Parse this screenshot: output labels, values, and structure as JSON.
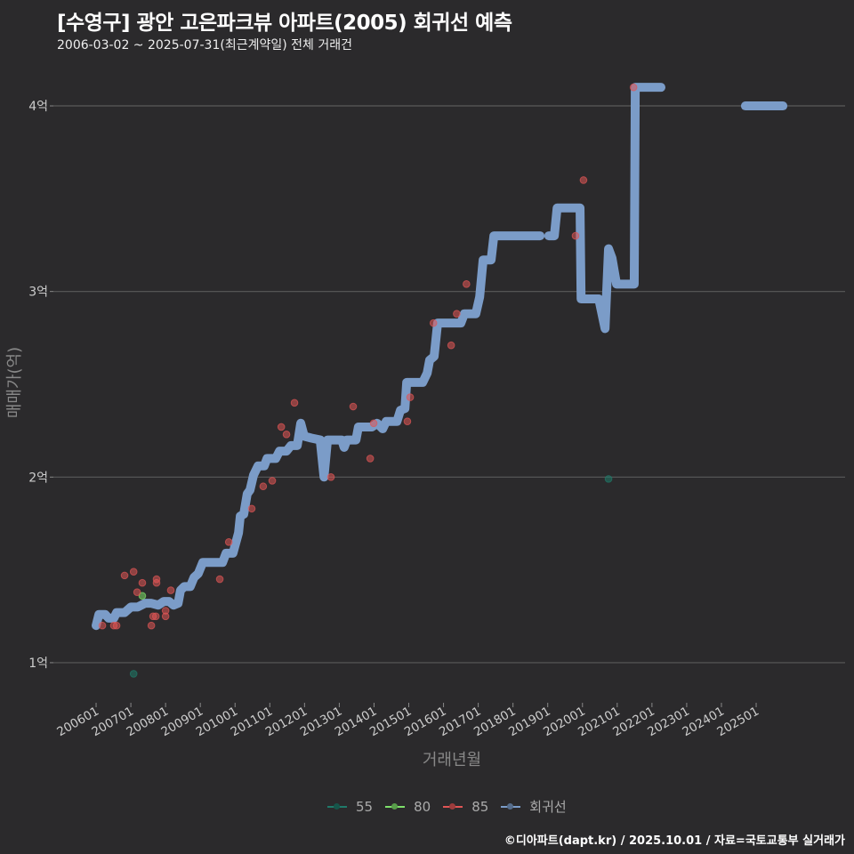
{
  "title": "[수영구] 광안 고은파크뷰 아파트(2005) 회귀선 예측",
  "subtitle": "2006-03-02 ~ 2025-07-31(최근계약일) 전체 거래건",
  "footer": "©디아파트(dapt.kr) / 2025.10.01 / 자료=국토교통부 실거래가",
  "chart_data": {
    "type": "scatter",
    "xlabel": "거래년월",
    "ylabel": "매매가(억)",
    "xlim": [
      2004.77,
      2027.56
    ],
    "ylim": [
      0.784,
      4.235
    ],
    "grid": true,
    "legend_position": "bottom",
    "x_ticks": [
      {
        "v": 2006,
        "label": "200601"
      },
      {
        "v": 2007,
        "label": "200701"
      },
      {
        "v": 2008,
        "label": "200801"
      },
      {
        "v": 2009,
        "label": "200901"
      },
      {
        "v": 2010,
        "label": "201001"
      },
      {
        "v": 2011,
        "label": "201101"
      },
      {
        "v": 2012,
        "label": "201201"
      },
      {
        "v": 2013,
        "label": "201301"
      },
      {
        "v": 2014,
        "label": "201401"
      },
      {
        "v": 2015,
        "label": "201501"
      },
      {
        "v": 2016,
        "label": "201601"
      },
      {
        "v": 2017,
        "label": "201701"
      },
      {
        "v": 2018,
        "label": "201801"
      },
      {
        "v": 2019,
        "label": "201901"
      },
      {
        "v": 2020,
        "label": "202001"
      },
      {
        "v": 2021,
        "label": "202101"
      },
      {
        "v": 2022,
        "label": "202201"
      },
      {
        "v": 2023,
        "label": "202301"
      },
      {
        "v": 2024,
        "label": "202401"
      },
      {
        "v": 2025,
        "label": "202501"
      }
    ],
    "y_ticks": [
      {
        "v": 1,
        "label": "1억"
      },
      {
        "v": 2,
        "label": "2억"
      },
      {
        "v": 3,
        "label": "3억"
      },
      {
        "v": 4,
        "label": "4억"
      }
    ],
    "legend": [
      {
        "name": "55",
        "color": "#1f7a6a"
      },
      {
        "name": "80",
        "color": "#7ee06a"
      },
      {
        "name": "85",
        "color": "#e05555"
      },
      {
        "name": "회귀선",
        "color": "#7b9cc8"
      }
    ],
    "series": [
      {
        "name": "55",
        "points": [
          [
            2007.08,
            0.94
          ],
          [
            2020.75,
            1.99
          ]
        ]
      },
      {
        "name": "80",
        "points": [
          [
            2007.33,
            1.36
          ]
        ]
      },
      {
        "name": "85",
        "points": [
          [
            2006.18,
            1.2
          ],
          [
            2006.51,
            1.2
          ],
          [
            2006.59,
            1.2
          ],
          [
            2006.82,
            1.47
          ],
          [
            2007.08,
            1.49
          ],
          [
            2007.18,
            1.38
          ],
          [
            2007.33,
            1.43
          ],
          [
            2007.59,
            1.2
          ],
          [
            2007.64,
            1.25
          ],
          [
            2007.72,
            1.25
          ],
          [
            2007.74,
            1.45
          ],
          [
            2007.74,
            1.43
          ],
          [
            2008.0,
            1.25
          ],
          [
            2008.0,
            1.28
          ],
          [
            2008.15,
            1.39
          ],
          [
            2009.56,
            1.45
          ],
          [
            2009.82,
            1.65
          ],
          [
            2010.48,
            1.83
          ],
          [
            2010.81,
            1.95
          ],
          [
            2011.07,
            1.98
          ],
          [
            2011.33,
            2.27
          ],
          [
            2011.48,
            2.23
          ],
          [
            2011.71,
            2.4
          ],
          [
            2012.76,
            2.0
          ],
          [
            2013.4,
            2.38
          ],
          [
            2013.89,
            2.1
          ],
          [
            2013.99,
            2.29
          ],
          [
            2014.96,
            2.3
          ],
          [
            2015.04,
            2.43
          ],
          [
            2015.71,
            2.83
          ],
          [
            2016.22,
            2.71
          ],
          [
            2016.38,
            2.88
          ],
          [
            2016.66,
            3.04
          ],
          [
            2019.8,
            3.3
          ],
          [
            2020.03,
            3.6
          ],
          [
            2021.47,
            4.1
          ]
        ]
      }
    ],
    "regression": [
      [
        [
          2006.0,
          1.2
        ],
        [
          2006.08,
          1.26
        ],
        [
          2006.26,
          1.26
        ],
        [
          2006.36,
          1.24
        ],
        [
          2006.51,
          1.24
        ],
        [
          2006.59,
          1.27
        ],
        [
          2006.82,
          1.27
        ],
        [
          2007.0,
          1.3
        ],
        [
          2007.2,
          1.3
        ],
        [
          2007.41,
          1.32
        ],
        [
          2007.59,
          1.32
        ],
        [
          2007.79,
          1.31
        ],
        [
          2007.95,
          1.33
        ],
        [
          2008.1,
          1.33
        ],
        [
          2008.23,
          1.31
        ],
        [
          2008.36,
          1.32
        ],
        [
          2008.43,
          1.39
        ],
        [
          2008.54,
          1.41
        ],
        [
          2008.71,
          1.41
        ],
        [
          2008.82,
          1.46
        ],
        [
          2008.94,
          1.48
        ],
        [
          2009.07,
          1.54
        ],
        [
          2009.64,
          1.54
        ],
        [
          2009.74,
          1.59
        ],
        [
          2009.94,
          1.59
        ],
        [
          2010.1,
          1.7
        ],
        [
          2010.15,
          1.79
        ],
        [
          2010.25,
          1.8
        ],
        [
          2010.35,
          1.91
        ],
        [
          2010.43,
          1.93
        ],
        [
          2010.53,
          2.01
        ],
        [
          2010.66,
          2.06
        ],
        [
          2010.84,
          2.06
        ],
        [
          2010.92,
          2.1
        ],
        [
          2011.17,
          2.1
        ],
        [
          2011.28,
          2.14
        ],
        [
          2011.48,
          2.14
        ],
        [
          2011.61,
          2.17
        ],
        [
          2011.79,
          2.17
        ],
        [
          2011.89,
          2.29
        ],
        [
          2011.99,
          2.22
        ],
        [
          2012.2,
          2.21
        ],
        [
          2012.45,
          2.2
        ],
        [
          2012.56,
          2.0
        ],
        [
          2012.66,
          2.2
        ],
        [
          2013.07,
          2.2
        ],
        [
          2013.14,
          2.16
        ],
        [
          2013.22,
          2.2
        ],
        [
          2013.48,
          2.2
        ],
        [
          2013.55,
          2.27
        ],
        [
          2013.94,
          2.27
        ],
        [
          2014.09,
          2.29
        ],
        [
          2014.25,
          2.26
        ],
        [
          2014.35,
          2.3
        ],
        [
          2014.66,
          2.3
        ],
        [
          2014.76,
          2.36
        ],
        [
          2014.89,
          2.37
        ],
        [
          2014.94,
          2.51
        ],
        [
          2015.4,
          2.51
        ],
        [
          2015.53,
          2.56
        ],
        [
          2015.6,
          2.63
        ],
        [
          2015.73,
          2.65
        ],
        [
          2015.83,
          2.83
        ],
        [
          2016.5,
          2.83
        ],
        [
          2016.6,
          2.88
        ],
        [
          2016.93,
          2.88
        ],
        [
          2017.04,
          2.97
        ],
        [
          2017.14,
          3.17
        ],
        [
          2017.37,
          3.17
        ],
        [
          2017.45,
          3.3
        ],
        [
          2018.78,
          3.3
        ]
      ],
      [
        [
          2019.03,
          3.3
        ],
        [
          2019.19,
          3.3
        ],
        [
          2019.27,
          3.45
        ],
        [
          2019.93,
          3.45
        ],
        [
          2019.96,
          2.96
        ],
        [
          2020.47,
          2.96
        ],
        [
          2020.65,
          2.8
        ],
        [
          2020.75,
          3.23
        ],
        [
          2020.85,
          3.18
        ],
        [
          2020.98,
          3.04
        ],
        [
          2021.49,
          3.04
        ],
        [
          2021.52,
          4.1
        ],
        [
          2022.26,
          4.1
        ]
      ],
      [
        [
          2024.69,
          4.0
        ],
        [
          2025.77,
          4.0
        ]
      ]
    ]
  }
}
